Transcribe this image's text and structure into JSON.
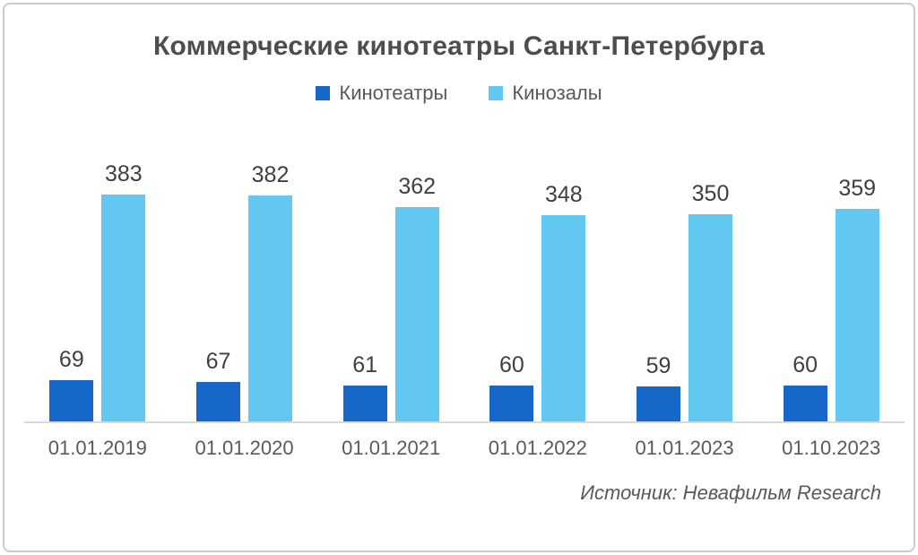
{
  "title": "Коммерческие кинотеатры Санкт-Петербурга",
  "source": "Источник: Невафильм Research",
  "legend": [
    {
      "label": "Кинотеатры",
      "color": "#1667c8"
    },
    {
      "label": "Кинозалы",
      "color": "#62c8f2"
    }
  ],
  "colors": {
    "series_dark_blue": "#1667c8",
    "series_light_blue": "#62c8f2",
    "frame_border": "#cbcbcb",
    "axis_line": "#d9d9d9",
    "title_text": "#4d4d4d",
    "label_text": "#3f3f3f",
    "axis_text": "#595959"
  },
  "chart_data": {
    "type": "bar",
    "title": "Коммерческие кинотеатры Санкт-Петербурга",
    "categories": [
      "01.01.2019",
      "01.01.2020",
      "01.01.2021",
      "01.01.2022",
      "01.01.2023",
      "01.10.2023"
    ],
    "series": [
      {
        "name": "Кинотеатры",
        "color": "#1667c8",
        "values": [
          69,
          67,
          61,
          60,
          59,
          60
        ]
      },
      {
        "name": "Кинозалы",
        "color": "#62c8f2",
        "values": [
          383,
          382,
          362,
          348,
          350,
          359
        ]
      }
    ],
    "xlabel": "",
    "ylabel": "",
    "ylim": [
      0,
      400
    ],
    "grid": false,
    "data_labels": true,
    "legend_position": "top",
    "annotations": [
      "Источник: Невафильм Research"
    ]
  }
}
